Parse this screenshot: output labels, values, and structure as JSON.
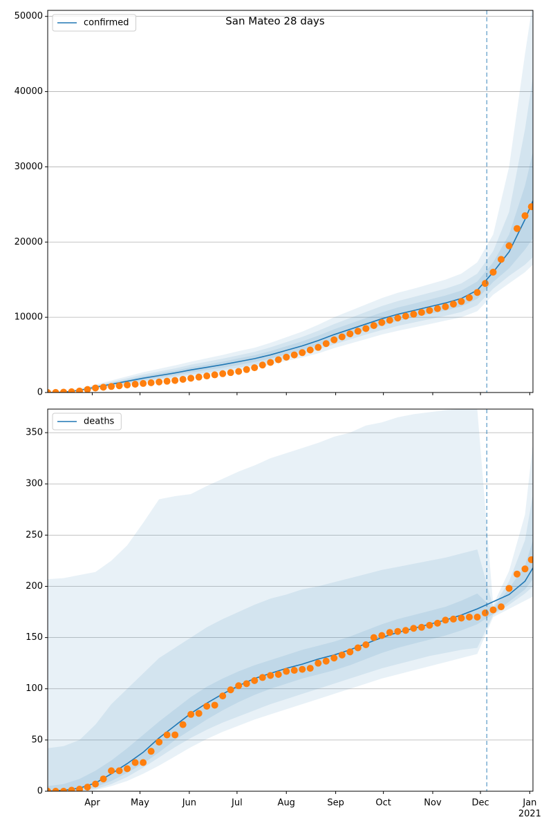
{
  "chart_data": [
    {
      "type": "line",
      "title": "San Mateo 28 days",
      "legend": "upper left",
      "grid": true,
      "xlim": [
        0,
        305
      ],
      "ylim": [
        0,
        50800
      ],
      "yticks": [
        0,
        10000,
        20000,
        30000,
        40000,
        50000
      ],
      "xticks": [
        {
          "value": 28,
          "label": "Apr"
        },
        {
          "value": 58,
          "label": "May"
        },
        {
          "value": 89,
          "label": "Jun"
        },
        {
          "value": 119,
          "label": "Jul"
        },
        {
          "value": 150,
          "label": "Aug"
        },
        {
          "value": 181,
          "label": "Sep"
        },
        {
          "value": 211,
          "label": "Oct"
        },
        {
          "value": 242,
          "label": "Nov"
        },
        {
          "value": 272,
          "label": "Dec"
        },
        {
          "value": 303,
          "label": "Jan"
        }
      ],
      "vline": 276,
      "x": [
        0,
        10,
        20,
        30,
        40,
        50,
        60,
        70,
        80,
        90,
        100,
        110,
        120,
        130,
        140,
        150,
        160,
        170,
        180,
        190,
        200,
        210,
        220,
        230,
        240,
        250,
        260,
        270,
        280,
        290,
        300,
        305
      ],
      "series": [
        {
          "name": "confirmed",
          "color": "#1f77b4",
          "values": [
            0,
            50,
            300,
            700,
            1100,
            1500,
            1900,
            2250,
            2600,
            3000,
            3350,
            3700,
            4100,
            4500,
            5000,
            5600,
            6200,
            6900,
            7700,
            8400,
            9100,
            9800,
            10400,
            10900,
            11400,
            11900,
            12500,
            13600,
            16000,
            18700,
            23000,
            25500
          ]
        }
      ],
      "bands": [
        {
          "lower": [
            0,
            20,
            150,
            400,
            700,
            1000,
            1300,
            1550,
            1800,
            2100,
            2350,
            2650,
            2950,
            3300,
            3700,
            4200,
            4650,
            5200,
            5900,
            6500,
            7100,
            7700,
            8200,
            8650,
            9100,
            9550,
            10000,
            10800,
            13000,
            14500,
            16000,
            17000
          ],
          "upper": [
            0,
            90,
            500,
            1050,
            1600,
            2150,
            2700,
            3150,
            3600,
            4100,
            4550,
            5000,
            5500,
            5950,
            6600,
            7350,
            8100,
            9000,
            10000,
            10850,
            11700,
            12550,
            13250,
            13800,
            14400,
            15000,
            15800,
            17300,
            21000,
            30000,
            45000,
            52000
          ]
        },
        {
          "lower": [
            0,
            30,
            200,
            500,
            850,
            1150,
            1500,
            1750,
            2050,
            2350,
            2650,
            2950,
            3300,
            3650,
            4100,
            4600,
            5100,
            5700,
            6400,
            7050,
            7700,
            8300,
            8850,
            9300,
            9750,
            10200,
            10700,
            11600,
            13800,
            15500,
            17000,
            18000
          ],
          "upper": [
            0,
            70,
            400,
            900,
            1400,
            1900,
            2400,
            2800,
            3200,
            3700,
            4100,
            4500,
            4950,
            5400,
            6000,
            6700,
            7400,
            8200,
            9100,
            9900,
            10700,
            11500,
            12150,
            12700,
            13250,
            13800,
            14500,
            15800,
            18800,
            24000,
            35000,
            42000
          ]
        },
        {
          "lower": [
            0,
            40,
            250,
            600,
            950,
            1300,
            1650,
            1950,
            2300,
            2650,
            3000,
            3300,
            3650,
            4050,
            4500,
            5050,
            5600,
            6250,
            7000,
            7650,
            8300,
            8950,
            9500,
            10000,
            10450,
            10900,
            11450,
            12450,
            14700,
            16500,
            19000,
            20500
          ],
          "upper": [
            0,
            60,
            350,
            800,
            1250,
            1700,
            2150,
            2550,
            2900,
            3350,
            3700,
            4100,
            4550,
            4950,
            5500,
            6150,
            6800,
            7550,
            8400,
            9150,
            9900,
            10650,
            11300,
            11800,
            12350,
            12900,
            13550,
            14750,
            17300,
            21000,
            27500,
            32000
          ]
        }
      ],
      "observed": {
        "color": "#ff7f0e",
        "x": [
          0,
          5,
          10,
          15,
          20,
          25,
          30,
          35,
          40,
          45,
          50,
          55,
          60,
          65,
          70,
          75,
          80,
          85,
          90,
          95,
          100,
          105,
          110,
          115,
          120,
          125,
          130,
          135,
          140,
          145,
          150,
          155,
          160,
          165,
          170,
          175,
          180,
          185,
          190,
          195,
          200,
          205,
          210,
          215,
          220,
          225,
          230,
          235,
          240,
          245,
          250,
          255,
          260,
          265,
          270,
          275,
          280,
          285,
          290,
          295,
          300,
          304
        ],
        "values": [
          0,
          10,
          50,
          100,
          200,
          400,
          600,
          700,
          800,
          900,
          1000,
          1100,
          1200,
          1300,
          1400,
          1500,
          1600,
          1750,
          1900,
          2050,
          2200,
          2350,
          2500,
          2650,
          2800,
          3050,
          3300,
          3650,
          4000,
          4350,
          4700,
          5000,
          5300,
          5650,
          6000,
          6500,
          7000,
          7400,
          7800,
          8150,
          8500,
          8900,
          9300,
          9600,
          9900,
          10150,
          10400,
          10650,
          10900,
          11150,
          11400,
          11750,
          12100,
          12600,
          13300,
          14500,
          16000,
          17700,
          19500,
          21800,
          23500,
          24700
        ]
      }
    },
    {
      "type": "line",
      "legend": "upper left",
      "grid": true,
      "xlim": [
        0,
        305
      ],
      "ylim": [
        0,
        373
      ],
      "yticks": [
        0,
        50,
        100,
        150,
        200,
        250,
        300,
        350
      ],
      "xticks": [
        {
          "value": 28,
          "label": "Apr"
        },
        {
          "value": 58,
          "label": "May"
        },
        {
          "value": 89,
          "label": "Jun"
        },
        {
          "value": 119,
          "label": "Jul"
        },
        {
          "value": 150,
          "label": "Aug"
        },
        {
          "value": 181,
          "label": "Sep"
        },
        {
          "value": 211,
          "label": "Oct"
        },
        {
          "value": 242,
          "label": "Nov"
        },
        {
          "value": 272,
          "label": "Dec"
        },
        {
          "value": 303,
          "label": "Jan"
        }
      ],
      "xtick_offset_label": "2021",
      "vline": 276,
      "x": [
        0,
        10,
        20,
        30,
        40,
        50,
        60,
        70,
        80,
        90,
        100,
        110,
        120,
        130,
        140,
        150,
        160,
        170,
        180,
        190,
        200,
        210,
        220,
        230,
        240,
        250,
        260,
        270,
        280,
        290,
        300,
        305
      ],
      "series": [
        {
          "name": "deaths",
          "color": "#1f77b4",
          "values": [
            0,
            1,
            3,
            8,
            17,
            27,
            38,
            52,
            64,
            76,
            86,
            95,
            103,
            110,
            115,
            120,
            124,
            129,
            133,
            138,
            144,
            150,
            155,
            159,
            163,
            167,
            172,
            178,
            185,
            192,
            205,
            218
          ]
        }
      ],
      "bands": [
        {
          "lower": [
            0,
            0,
            0,
            1,
            5,
            10,
            17,
            25,
            34,
            43,
            51,
            58,
            64,
            70,
            75,
            80,
            85,
            90,
            95,
            100,
            105,
            110,
            114,
            118,
            122,
            126,
            130,
            134,
            170,
            178,
            186,
            190
          ],
          "upper": [
            207,
            208,
            211,
            214,
            225,
            240,
            262,
            285,
            288,
            290,
            298,
            305,
            312,
            318,
            325,
            330,
            335,
            340,
            346,
            350,
            357,
            360,
            365,
            368,
            370,
            372,
            373,
            373,
            182,
            215,
            270,
            340
          ]
        },
        {
          "lower": [
            0,
            0,
            0,
            2,
            7,
            14,
            23,
            33,
            43,
            52,
            60,
            67,
            73,
            79,
            85,
            90,
            95,
            100,
            105,
            110,
            115,
            120,
            124,
            128,
            132,
            135,
            138,
            140,
            172,
            182,
            193,
            200
          ],
          "upper": [
            42,
            44,
            50,
            65,
            85,
            100,
            115,
            130,
            140,
            150,
            160,
            168,
            175,
            182,
            188,
            192,
            197,
            200,
            204,
            208,
            212,
            216,
            219,
            222,
            225,
            228,
            232,
            236,
            180,
            205,
            245,
            290
          ]
        },
        {
          "lower": [
            0,
            0,
            1,
            4,
            10,
            18,
            27,
            38,
            50,
            60,
            70,
            79,
            87,
            94,
            100,
            105,
            110,
            114,
            118,
            123,
            129,
            135,
            140,
            144,
            148,
            152,
            157,
            163,
            173,
            185,
            197,
            207
          ],
          "upper": [
            5,
            7,
            12,
            20,
            30,
            42,
            55,
            68,
            80,
            92,
            102,
            110,
            117,
            123,
            128,
            133,
            138,
            142,
            146,
            151,
            157,
            163,
            168,
            172,
            176,
            180,
            186,
            193,
            178,
            198,
            220,
            245
          ]
        }
      ],
      "observed": {
        "color": "#ff7f0e",
        "x": [
          0,
          5,
          10,
          15,
          20,
          25,
          30,
          35,
          40,
          45,
          50,
          55,
          60,
          65,
          70,
          75,
          80,
          85,
          90,
          95,
          100,
          105,
          110,
          115,
          120,
          125,
          130,
          135,
          140,
          145,
          150,
          155,
          160,
          165,
          170,
          175,
          180,
          185,
          190,
          195,
          200,
          205,
          210,
          215,
          220,
          225,
          230,
          235,
          240,
          245,
          250,
          255,
          260,
          265,
          270,
          275,
          280,
          285,
          290,
          295,
          300,
          304
        ],
        "values": [
          0,
          0,
          0,
          1,
          2,
          4,
          7,
          12,
          20,
          20,
          22,
          28,
          28,
          39,
          48,
          55,
          55,
          65,
          75,
          76,
          83,
          84,
          93,
          99,
          103,
          105,
          108,
          111,
          113,
          114,
          117,
          118,
          119,
          120,
          125,
          127,
          130,
          133,
          136,
          140,
          143,
          150,
          152,
          155,
          156,
          157,
          159,
          160,
          162,
          164,
          167,
          168,
          169,
          170,
          170,
          174,
          177,
          180,
          198,
          212,
          217,
          226
        ]
      }
    }
  ]
}
